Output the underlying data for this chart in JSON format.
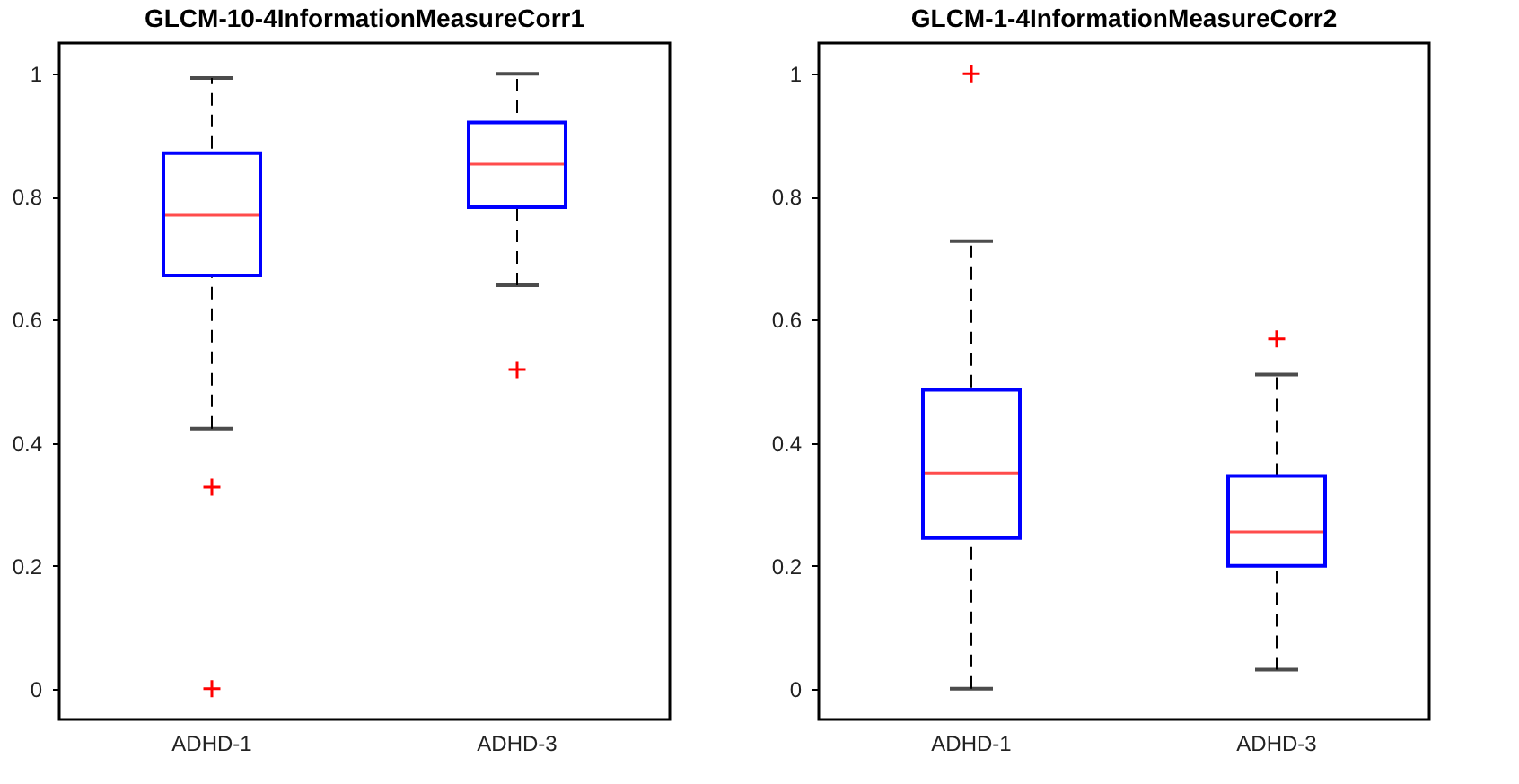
{
  "chart_data": [
    {
      "type": "box",
      "title": "GLCM-10-4InformationMeasureCorr1",
      "categories": [
        "ADHD-1",
        "ADHD-3"
      ],
      "ylim": [
        -0.05,
        1.05
      ],
      "yticks": [
        0,
        0.2,
        0.4,
        0.6,
        0.8,
        1
      ],
      "marker": "cross",
      "series": [
        {
          "color": "#0000ff",
          "boxes": [
            {
              "low": 0.423,
              "q1": 0.672,
              "median": 0.77,
              "q3": 0.871,
              "high": 0.993,
              "outliers": [
                0.328,
                0
              ]
            },
            {
              "low": 0.656,
              "q1": 0.783,
              "median": 0.853,
              "q3": 0.921,
              "high": 1.0,
              "outliers": [
                0.519
              ]
            }
          ]
        }
      ]
    },
    {
      "type": "box",
      "title": "GLCM-1-4InformationMeasureCorr2",
      "categories": [
        "ADHD-1",
        "ADHD-3"
      ],
      "ylim": [
        -0.05,
        1.05
      ],
      "yticks": [
        0,
        0.2,
        0.4,
        0.6,
        0.8,
        1
      ],
      "marker": "cross",
      "series": [
        {
          "color": "#0000ff",
          "boxes": [
            {
              "low": 0,
              "q1": 0.245,
              "median": 0.351,
              "q3": 0.486,
              "high": 0.728,
              "outliers": [
                1.0
              ]
            },
            {
              "low": 0.031,
              "q1": 0.2,
              "median": 0.255,
              "q3": 0.346,
              "high": 0.511,
              "outliers": [
                0.569
              ]
            }
          ]
        }
      ]
    }
  ]
}
